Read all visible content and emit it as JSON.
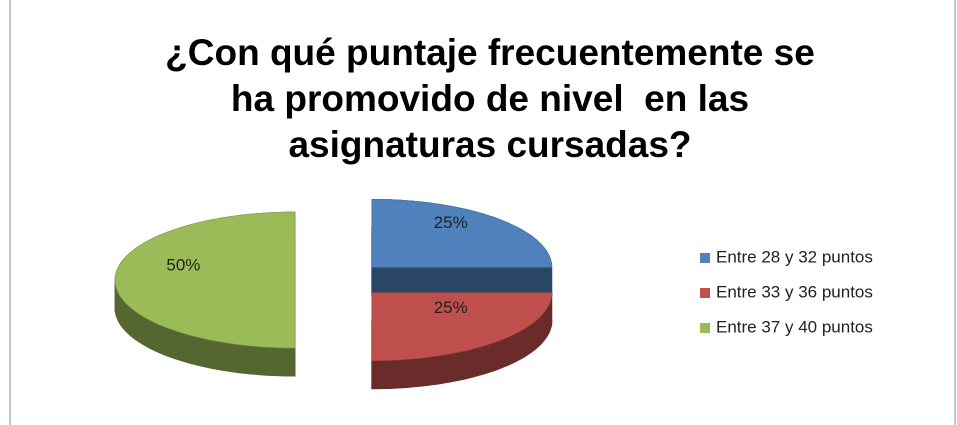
{
  "chart_data": {
    "type": "pie",
    "title": [
      "¿Con qué puntaje frecuentemente se",
      "ha promovido de nivel  en las",
      "asignaturas cursadas?"
    ],
    "categories": [
      "Entre 28 y 32 puntos",
      "Entre 33 y 36 puntos",
      "Entre 37 y 40 puntos"
    ],
    "values": [
      25,
      25,
      50
    ],
    "value_labels": [
      "25%",
      "25%",
      "50%"
    ],
    "colors": [
      "#4f81bd",
      "#c0504d",
      "#9bbb59"
    ],
    "legend": "right"
  }
}
